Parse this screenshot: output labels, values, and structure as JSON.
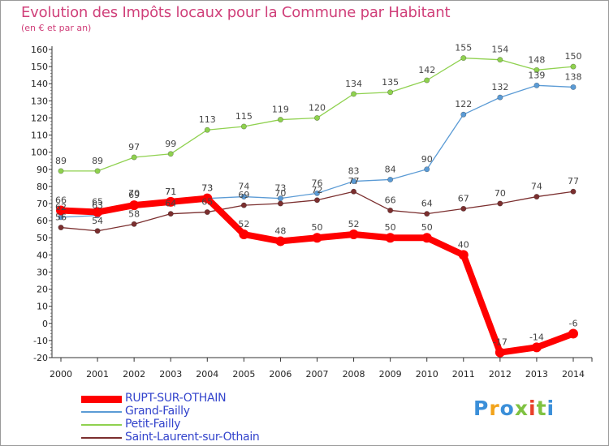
{
  "chart_data": {
    "type": "line",
    "title": "Evolution des Impôts locaux pour la Commune par Habitant",
    "subtitle": "(en € et par an)",
    "categories": [
      "2000",
      "2001",
      "2002",
      "2003",
      "2004",
      "2005",
      "2006",
      "2007",
      "2008",
      "2009",
      "2010",
      "2011",
      "2012",
      "2013",
      "2014"
    ],
    "ylim": [
      -20,
      160
    ],
    "yticks": [
      -20,
      -10,
      0,
      10,
      20,
      30,
      40,
      50,
      60,
      70,
      80,
      90,
      100,
      110,
      120,
      130,
      140,
      150,
      160
    ],
    "grid": false,
    "legend_position": "bottom-left",
    "series": [
      {
        "name": "RUPT-SUR-OTHAIN",
        "color": "#ff0000",
        "values": [
          66,
          65,
          69,
          71,
          73,
          52,
          48,
          50,
          52,
          50,
          50,
          40,
          -17,
          -14,
          -6
        ],
        "labels": [
          "66",
          "65",
          "69",
          "71",
          "73",
          "52",
          "48",
          "50",
          "52",
          "50",
          "50",
          "40",
          "-17",
          "-14",
          "-6"
        ]
      },
      {
        "name": "Grand-Failly",
        "color": "#5b9bd5",
        "values": [
          62,
          63,
          70,
          71,
          73,
          74,
          73,
          76,
          83,
          84,
          90,
          122,
          132,
          139,
          138
        ],
        "labels": [
          "62",
          "63",
          "70",
          "71",
          "73",
          "74",
          "73",
          "76",
          "83",
          "84",
          "90",
          "122",
          "132",
          "139",
          "138"
        ]
      },
      {
        "name": "Petit-Failly",
        "color": "#8fd14f",
        "values": [
          89,
          89,
          97,
          99,
          113,
          115,
          119,
          120,
          134,
          135,
          142,
          155,
          154,
          148,
          150
        ],
        "labels": [
          "89",
          "89",
          "97",
          "99",
          "113",
          "115",
          "119",
          "120",
          "134",
          "135",
          "142",
          "155",
          "154",
          "148",
          "150"
        ]
      },
      {
        "name": "Saint-Laurent-sur-Othain",
        "color": "#7b2f2f",
        "values": [
          56,
          54,
          58,
          64,
          65,
          69,
          70,
          72,
          77,
          66,
          64,
          67,
          70,
          74,
          77
        ],
        "labels": [
          "56",
          "54",
          "58",
          "64",
          "65",
          "69",
          "70",
          "72",
          "77",
          "66",
          "64",
          "67",
          "70",
          "74",
          "77"
        ]
      }
    ]
  },
  "logo": {
    "text": "Proxiti"
  }
}
